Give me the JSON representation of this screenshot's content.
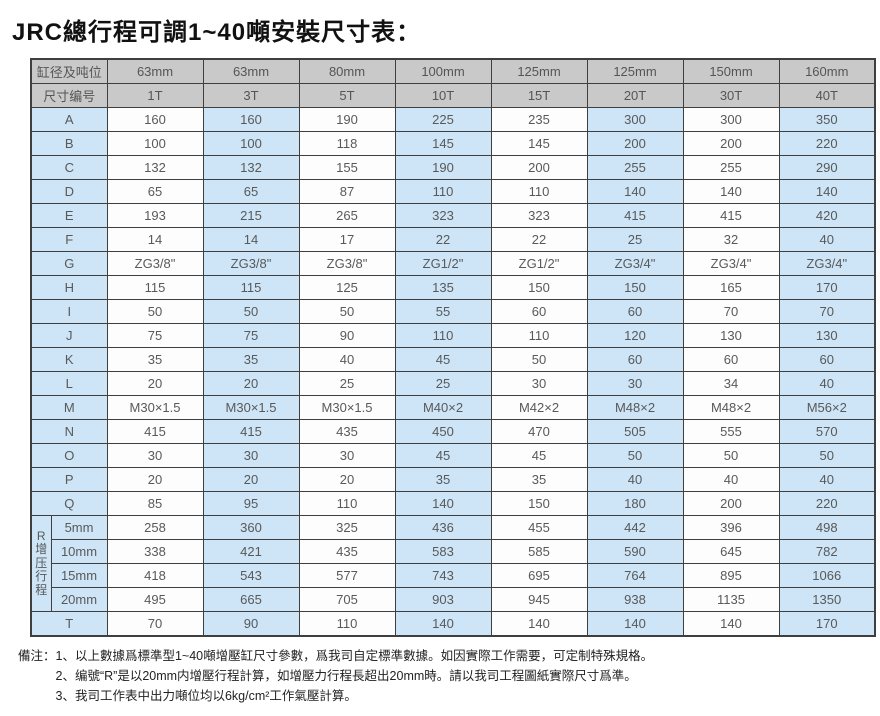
{
  "title": "JRC總行程可調1~40噸安裝尺寸表：",
  "colors": {
    "header_bg": "#c9c9c9",
    "label_bg": "#cde5f6",
    "alt_cell_bg": "#cde5f6",
    "white_cell_bg": "#fdfdfd",
    "border": "#3f3f3f",
    "cell_text": "#595959",
    "title_text": "#111111"
  },
  "table": {
    "corner_top": "缸径及吨位",
    "corner_bottom": "尺寸编号",
    "bores": [
      "63mm",
      "63mm",
      "80mm",
      "100mm",
      "125mm",
      "125mm",
      "150mm",
      "160mm"
    ],
    "tons": [
      "1T",
      "3T",
      "5T",
      "10T",
      "15T",
      "20T",
      "30T",
      "40T"
    ],
    "rows": [
      {
        "label": "A",
        "values": [
          "160",
          "160",
          "190",
          "225",
          "235",
          "300",
          "300",
          "350"
        ]
      },
      {
        "label": "B",
        "values": [
          "100",
          "100",
          "118",
          "145",
          "145",
          "200",
          "200",
          "220"
        ]
      },
      {
        "label": "C",
        "values": [
          "132",
          "132",
          "155",
          "190",
          "200",
          "255",
          "255",
          "290"
        ]
      },
      {
        "label": "D",
        "values": [
          "65",
          "65",
          "87",
          "110",
          "110",
          "140",
          "140",
          "140"
        ]
      },
      {
        "label": "E",
        "values": [
          "193",
          "215",
          "265",
          "323",
          "323",
          "415",
          "415",
          "420"
        ]
      },
      {
        "label": "F",
        "values": [
          "14",
          "14",
          "17",
          "22",
          "22",
          "25",
          "32",
          "40"
        ]
      },
      {
        "label": "G",
        "values": [
          "ZG3/8\"",
          "ZG3/8\"",
          "ZG3/8\"",
          "ZG1/2\"",
          "ZG1/2\"",
          "ZG3/4\"",
          "ZG3/4\"",
          "ZG3/4\""
        ]
      },
      {
        "label": "H",
        "values": [
          "115",
          "115",
          "125",
          "135",
          "150",
          "150",
          "165",
          "170"
        ]
      },
      {
        "label": "I",
        "values": [
          "50",
          "50",
          "50",
          "55",
          "60",
          "60",
          "70",
          "70"
        ]
      },
      {
        "label": "J",
        "values": [
          "75",
          "75",
          "90",
          "110",
          "110",
          "120",
          "130",
          "130"
        ]
      },
      {
        "label": "K",
        "values": [
          "35",
          "35",
          "40",
          "45",
          "50",
          "60",
          "60",
          "60"
        ]
      },
      {
        "label": "L",
        "values": [
          "20",
          "20",
          "25",
          "25",
          "30",
          "30",
          "34",
          "40"
        ]
      },
      {
        "label": "M",
        "values": [
          "M30×1.5",
          "M30×1.5",
          "M30×1.5",
          "M40×2",
          "M42×2",
          "M48×2",
          "M48×2",
          "M56×2"
        ]
      },
      {
        "label": "N",
        "values": [
          "415",
          "415",
          "435",
          "450",
          "470",
          "505",
          "555",
          "570"
        ]
      },
      {
        "label": "O",
        "values": [
          "30",
          "30",
          "30",
          "45",
          "45",
          "50",
          "50",
          "50"
        ]
      },
      {
        "label": "P",
        "values": [
          "20",
          "20",
          "20",
          "35",
          "35",
          "40",
          "40",
          "40"
        ]
      },
      {
        "label": "Q",
        "values": [
          "85",
          "95",
          "110",
          "140",
          "150",
          "180",
          "200",
          "220"
        ]
      }
    ],
    "r_section": {
      "label": "R增压行程",
      "rows": [
        {
          "label": "5mm",
          "values": [
            "258",
            "360",
            "325",
            "436",
            "455",
            "442",
            "396",
            "498"
          ]
        },
        {
          "label": "10mm",
          "values": [
            "338",
            "421",
            "435",
            "583",
            "585",
            "590",
            "645",
            "782"
          ]
        },
        {
          "label": "15mm",
          "values": [
            "418",
            "543",
            "577",
            "743",
            "695",
            "764",
            "895",
            "1066"
          ]
        },
        {
          "label": "20mm",
          "values": [
            "495",
            "665",
            "705",
            "903",
            "945",
            "938",
            "1135",
            "1350"
          ]
        }
      ]
    },
    "t_row": {
      "label": "T",
      "values": [
        "70",
        "90",
        "110",
        "140",
        "140",
        "140",
        "140",
        "170"
      ]
    }
  },
  "notes": {
    "label": "備注：",
    "items": [
      "1、以上數據爲標準型1~40噸增壓缸尺寸參數，爲我司自定標準數據。如因實際工作需要，可定制特殊規格。",
      "2、编號“R”是以20mm内增壓行程計算，如增壓力行程長超出20mm時。請以我司工程圖紙實際尺寸爲準。",
      "3、我司工作表中出力噸位均以6kg/cm²工作氣壓計算。"
    ]
  }
}
